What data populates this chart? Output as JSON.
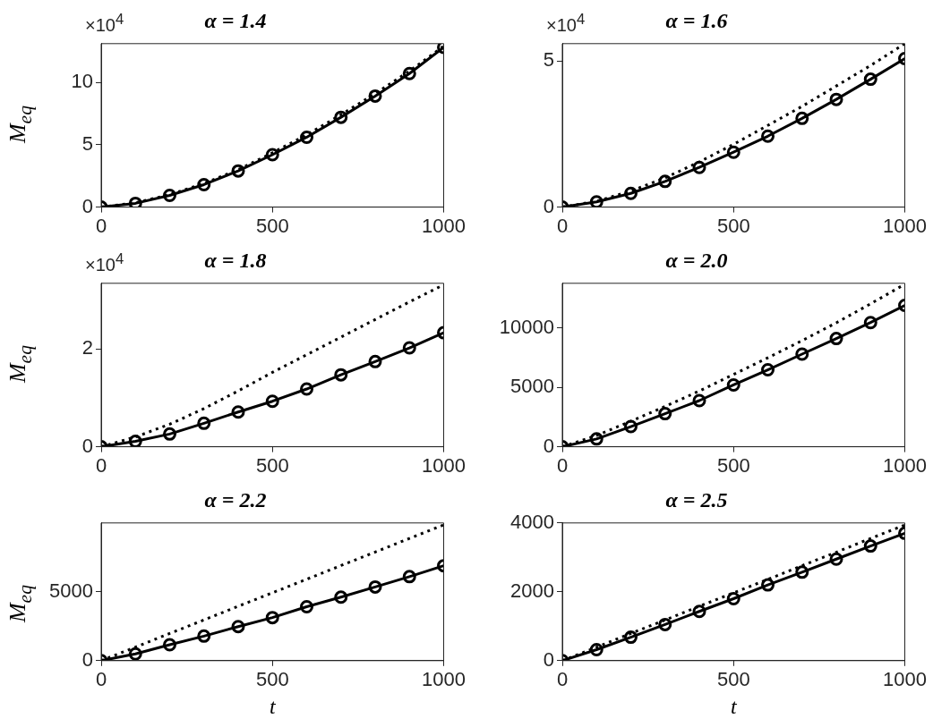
{
  "chart_data": [
    {
      "type": "line",
      "title": "α = 1.4",
      "ylabel": "M$_{eq}$",
      "annotations": [
        "×10$^{4}$"
      ],
      "x": [
        0,
        100,
        200,
        300,
        400,
        500,
        600,
        700,
        800,
        900,
        1000
      ],
      "xlim": [
        0,
        1000
      ],
      "xticks": [
        0,
        500,
        1000
      ],
      "ylim": [
        0,
        13.1
      ],
      "yticks": [
        0,
        5,
        10
      ],
      "series": [
        {
          "color": "#000000",
          "marker": "circle",
          "line_style": "solid",
          "values": [
            0,
            0.3,
            0.94,
            1.8,
            2.9,
            4.2,
            5.6,
            7.2,
            8.9,
            10.7,
            12.8
          ]
        },
        {
          "color": "#000000",
          "marker": "none",
          "line_style": "dotted",
          "values": [
            0,
            0.35,
            1.0,
            1.9,
            3.0,
            4.35,
            5.8,
            7.4,
            9.1,
            10.9,
            12.9
          ]
        }
      ]
    },
    {
      "type": "line",
      "title": "α = 1.6",
      "annotations": [
        "×10$^{4}$"
      ],
      "x": [
        0,
        100,
        200,
        300,
        400,
        500,
        600,
        700,
        800,
        900,
        1000
      ],
      "xlim": [
        0,
        1000
      ],
      "xticks": [
        0,
        500,
        1000
      ],
      "ylim": [
        0,
        5.6
      ],
      "yticks": [
        0,
        5
      ],
      "series": [
        {
          "color": "#000000",
          "marker": "circle",
          "line_style": "solid",
          "values": [
            0,
            0.18,
            0.47,
            0.88,
            1.36,
            1.88,
            2.43,
            3.04,
            3.69,
            4.38,
            5.09
          ]
        },
        {
          "color": "#000000",
          "marker": "none",
          "line_style": "dotted",
          "values": [
            0,
            0.2,
            0.55,
            1.0,
            1.55,
            2.15,
            2.8,
            3.45,
            4.15,
            4.85,
            5.6
          ]
        }
      ]
    },
    {
      "type": "line",
      "title": "α = 1.8",
      "ylabel": "M$_{eq}$",
      "annotations": [
        "×10$^{4}$"
      ],
      "x": [
        0,
        100,
        200,
        300,
        400,
        500,
        600,
        700,
        800,
        900,
        1000
      ],
      "xlim": [
        0,
        1000
      ],
      "xticks": [
        0,
        500,
        1000
      ],
      "ylim": [
        0,
        3.34
      ],
      "yticks": [
        0,
        2
      ],
      "series": [
        {
          "color": "#000000",
          "marker": "circle",
          "line_style": "solid",
          "values": [
            0,
            0.11,
            0.26,
            0.48,
            0.71,
            0.93,
            1.18,
            1.47,
            1.74,
            2.02,
            2.33
          ]
        },
        {
          "color": "#000000",
          "marker": "none",
          "line_style": "dotted",
          "values": [
            0,
            0.2,
            0.46,
            0.78,
            1.14,
            1.52,
            1.88,
            2.24,
            2.6,
            2.96,
            3.31
          ]
        }
      ]
    },
    {
      "type": "line",
      "title": "α = 2.0",
      "x": [
        0,
        100,
        200,
        300,
        400,
        500,
        600,
        700,
        800,
        900,
        1000
      ],
      "xlim": [
        0,
        1000
      ],
      "xticks": [
        0,
        500,
        1000
      ],
      "ylim": [
        0,
        13780
      ],
      "yticks": [
        0,
        5000,
        10000
      ],
      "series": [
        {
          "color": "#000000",
          "marker": "circle",
          "line_style": "solid",
          "values": [
            0,
            660,
            1700,
            2790,
            3890,
            5210,
            6490,
            7810,
            9120,
            10470,
            11920
          ]
        },
        {
          "color": "#000000",
          "marker": "none",
          "line_style": "dotted",
          "values": [
            0,
            950,
            2150,
            3400,
            4700,
            6100,
            7500,
            8950,
            10450,
            12050,
            13700
          ]
        }
      ]
    },
    {
      "type": "line",
      "title": "α = 2.2",
      "ylabel": "M$_{eq}$",
      "xlabel": "t",
      "x": [
        0,
        100,
        200,
        300,
        400,
        500,
        600,
        700,
        800,
        900,
        1000
      ],
      "xlim": [
        0,
        1000
      ],
      "xticks": [
        0,
        500,
        1000
      ],
      "ylim": [
        0,
        9980
      ],
      "yticks": [
        0,
        5000
      ],
      "series": [
        {
          "color": "#000000",
          "marker": "circle",
          "line_style": "solid",
          "values": [
            0,
            490,
            1150,
            1780,
            2470,
            3120,
            3910,
            4600,
            5340,
            6090,
            6880
          ]
        },
        {
          "color": "#000000",
          "marker": "none",
          "line_style": "dotted",
          "values": [
            0,
            980,
            1970,
            2950,
            3940,
            4920,
            5900,
            6890,
            7870,
            8860,
            9840
          ]
        }
      ]
    },
    {
      "type": "line",
      "title": "α = 2.5",
      "xlabel": "t",
      "x": [
        0,
        100,
        200,
        300,
        400,
        500,
        600,
        700,
        800,
        900,
        1000
      ],
      "xlim": [
        0,
        1000
      ],
      "xticks": [
        0,
        500,
        1000
      ],
      "ylim": [
        0,
        4000
      ],
      "yticks": [
        0,
        2000,
        4000
      ],
      "series": [
        {
          "color": "#000000",
          "marker": "circle",
          "line_style": "solid",
          "values": [
            0,
            320,
            680,
            1050,
            1430,
            1800,
            2200,
            2570,
            2950,
            3330,
            3700
          ]
        },
        {
          "color": "#000000",
          "marker": "none",
          "line_style": "dotted",
          "values": [
            0,
            390,
            790,
            1180,
            1580,
            1970,
            2360,
            2760,
            3150,
            3550,
            3940
          ]
        }
      ]
    }
  ]
}
